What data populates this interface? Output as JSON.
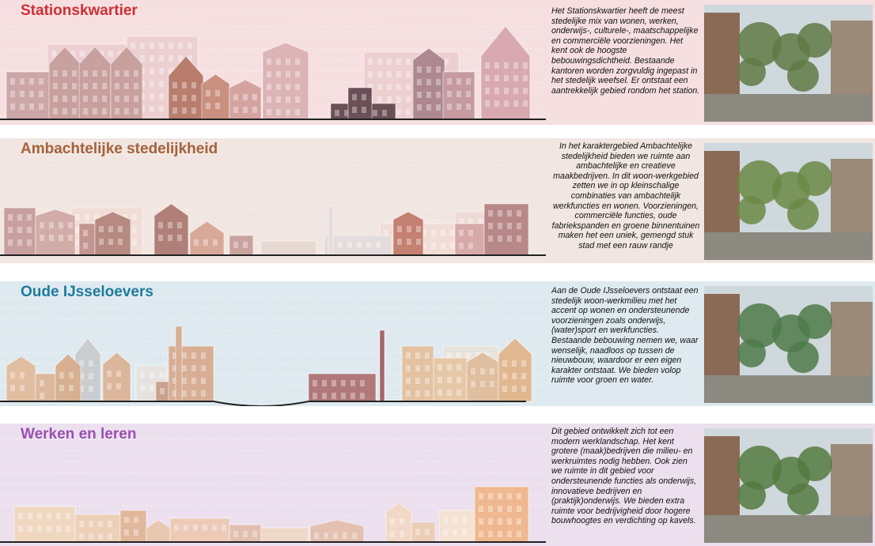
{
  "panels": [
    {
      "title": "Stationskwartier",
      "text": "Het Stationskwartier heeft de meest stedelijke mix van wonen, werken, onderwijs-, culturele-, maatschappelijke en commerciële voorzieningen. Het kent ook de hoogste bebouwingsdichtheid. Bestaande kantoren worden zorgvuldig ingepast in het stedelijk weefsel. Er ontstaat  een aantrekkelijk gebied rondom het station."
    },
    {
      "title": "Ambachtelijke stedelijkheid",
      "text": "In het karaktergebied Ambachtelijke stedelijkheid bieden we ruimte aan ambachtelijke en creatieve maakbedrijven. In dit woon-werkgebied zetten we in op kleinschalige combinaties van ambachtelijk werkfuncties en wonen. Voorzieningen, commerciële functies, oude fabriekspanden en groene binnentuinen maken het een uniek, gemengd stuk stad met een rauw randje"
    },
    {
      "title": "Oude IJsseloevers",
      "text": "Aan de Oude IJsseloevers ontstaat een stedelijk woon-werkmilieu met het accent op wonen en ondersteunende voorzieningen zoals onderwijs, (water)sport en werkfuncties. Bestaande bebouwing nemen we, waar wenselijk, naadloos op tussen de nieuwbouw, waardoor er een eigen karakter ontstaat. We bieden volop ruimte voor groen en water."
    },
    {
      "title": "Werken en leren",
      "text": "Dit gebied ontwikkelt zich tot een modern werklandschap. Het kent grotere (maak)bedrijven die milieu- en werkruimtes nodig hebben. Ook zien we ruimte in dit gebied voor ondersteunende functies als onderwijs, innovatieve bedrijven en (praktijk)onderwijs. We bieden extra ruimte voor bedrijvigheid door hogere bouwhoogtes en verdichting op kavels."
    }
  ]
}
